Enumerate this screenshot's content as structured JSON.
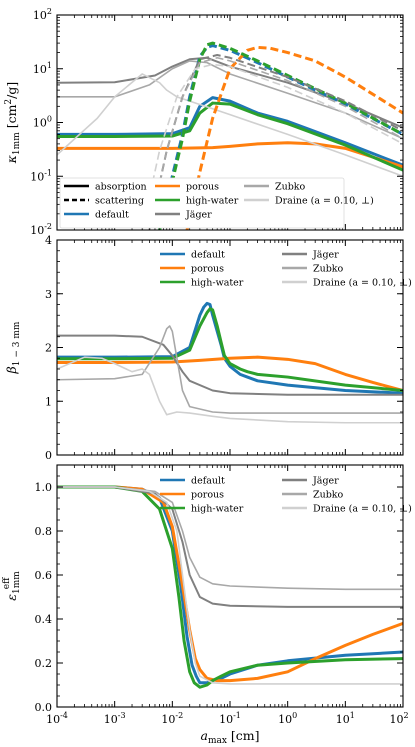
{
  "chart_data": [
    {
      "type": "line",
      "name": "kappa",
      "xscale": "log",
      "yscale": "log",
      "xlim": [
        0.0001,
        100
      ],
      "ylim": [
        0.01,
        100
      ],
      "xlabel": "",
      "ylabel": "κ1mm [cm²/g]",
      "x_ticks": [
        0.0001,
        0.001,
        0.01,
        0.1,
        1,
        10,
        100
      ],
      "y_ticks": [
        0.01,
        0.1,
        1,
        10,
        100
      ],
      "legend_position": "bottom-right",
      "legend": [
        {
          "label": "absorption",
          "color": "#000000",
          "style": "solid"
        },
        {
          "label": "scattering",
          "color": "#000000",
          "style": "dashed"
        },
        {
          "label": "default",
          "color": "#1f77b4",
          "style": "solid"
        },
        {
          "label": "porous",
          "color": "#ff7f0e",
          "style": "solid"
        },
        {
          "label": "high-water",
          "color": "#2ca02c",
          "style": "solid"
        },
        {
          "label": "Jäger",
          "color": "#808080",
          "style": "solid"
        },
        {
          "label": "Zubko",
          "color": "#a8a8a8",
          "style": "solid"
        },
        {
          "label": "Draine (a = 0.10, ⊥)",
          "color": "#d0d0d0",
          "style": "solid"
        }
      ],
      "series": [
        {
          "id": "default-abs",
          "color": "#1f77b4",
          "dash": false,
          "width": 3,
          "x": [
            0.0001,
            0.001,
            0.01,
            0.02,
            0.03,
            0.05,
            0.1,
            0.3,
            1,
            10,
            100
          ],
          "y": [
            0.6,
            0.6,
            0.62,
            0.8,
            2.0,
            2.9,
            2.5,
            1.5,
            1.05,
            0.42,
            0.16
          ]
        },
        {
          "id": "porous-abs",
          "color": "#ff7f0e",
          "dash": false,
          "width": 3,
          "x": [
            0.0001,
            0.001,
            0.01,
            0.05,
            0.1,
            0.3,
            1,
            3,
            10,
            100
          ],
          "y": [
            0.33,
            0.33,
            0.33,
            0.34,
            0.36,
            0.4,
            0.42,
            0.4,
            0.33,
            0.15
          ]
        },
        {
          "id": "highwater-abs",
          "color": "#2ca02c",
          "dash": false,
          "width": 3,
          "x": [
            0.0001,
            0.001,
            0.01,
            0.02,
            0.03,
            0.05,
            0.1,
            0.3,
            1,
            10,
            100
          ],
          "y": [
            0.55,
            0.55,
            0.56,
            0.7,
            1.5,
            2.3,
            2.2,
            1.4,
            0.95,
            0.38,
            0.13
          ]
        },
        {
          "id": "jager-abs",
          "color": "#808080",
          "dash": false,
          "width": 2,
          "x": [
            0.0001,
            0.001,
            0.005,
            0.01,
            0.02,
            0.04,
            0.1,
            1,
            10,
            100
          ],
          "y": [
            5.5,
            5.6,
            7.5,
            11,
            15,
            16,
            11,
            5.5,
            2.3,
            0.8
          ]
        },
        {
          "id": "zubko-abs",
          "color": "#a8a8a8",
          "dash": false,
          "width": 1.6,
          "x": [
            0.0001,
            0.001,
            0.004,
            0.01,
            0.02,
            0.04,
            0.1,
            1,
            10,
            100
          ],
          "y": [
            3,
            3,
            5,
            10,
            14,
            13,
            8,
            3.5,
            1.5,
            0.5
          ]
        },
        {
          "id": "draine-abs",
          "color": "#d0d0d0",
          "dash": false,
          "width": 1.6,
          "x": [
            0.0001,
            0.0005,
            0.001,
            0.003,
            0.006,
            0.008,
            0.012,
            0.02,
            0.05,
            0.1,
            1,
            10,
            100
          ],
          "y": [
            0.25,
            1.2,
            3,
            8,
            5.5,
            4,
            3,
            2.5,
            1.8,
            1.4,
            0.6,
            0.25,
            0.1
          ]
        },
        {
          "id": "default-sca",
          "color": "#1f77b4",
          "dash": true,
          "width": 3,
          "x": [
            0.006,
            0.01,
            0.015,
            0.02,
            0.03,
            0.04,
            0.05,
            0.1,
            0.3,
            1,
            10,
            100
          ],
          "y": [
            0.01,
            0.1,
            0.6,
            3,
            17,
            25,
            27,
            22,
            13,
            7,
            2.2,
            0.6
          ]
        },
        {
          "id": "porous-sca",
          "color": "#ff7f0e",
          "dash": true,
          "width": 3,
          "x": [
            0.018,
            0.03,
            0.05,
            0.1,
            0.2,
            0.3,
            0.5,
            1,
            3,
            10,
            100
          ],
          "y": [
            0.01,
            0.12,
            1.2,
            10,
            22,
            25,
            24,
            20,
            14,
            7,
            1.5
          ]
        },
        {
          "id": "highwater-sca",
          "color": "#2ca02c",
          "dash": true,
          "width": 3,
          "x": [
            0.006,
            0.01,
            0.015,
            0.02,
            0.03,
            0.04,
            0.05,
            0.1,
            0.3,
            1,
            10,
            100
          ],
          "y": [
            0.01,
            0.08,
            0.5,
            2.5,
            15,
            28,
            30,
            24,
            14,
            7.5,
            2.3,
            0.6
          ]
        },
        {
          "id": "jager-sca",
          "color": "#808080",
          "dash": true,
          "width": 2,
          "x": [
            0.004,
            0.008,
            0.015,
            0.03,
            0.06,
            0.1,
            1,
            10,
            100
          ],
          "y": [
            0.01,
            0.3,
            3,
            15,
            18,
            16,
            7,
            2.5,
            0.7
          ]
        },
        {
          "id": "zubko-sca",
          "color": "#a8a8a8",
          "dash": true,
          "width": 1.6,
          "x": [
            0.004,
            0.008,
            0.015,
            0.03,
            0.06,
            0.1,
            1,
            10,
            100
          ],
          "y": [
            0.01,
            0.3,
            3,
            13,
            16,
            14,
            6,
            2,
            0.5
          ]
        },
        {
          "id": "draine-sca",
          "color": "#d0d0d0",
          "dash": true,
          "width": 1.6,
          "x": [
            0.003,
            0.006,
            0.012,
            0.025,
            0.05,
            0.1,
            1,
            10,
            100
          ],
          "y": [
            0.01,
            0.3,
            3,
            10,
            12,
            11,
            4.5,
            1.5,
            0.4
          ]
        }
      ]
    },
    {
      "type": "line",
      "name": "beta",
      "xscale": "log",
      "yscale": "linear",
      "xlim": [
        0.0001,
        100
      ],
      "ylim": [
        0,
        4
      ],
      "xlabel": "",
      "ylabel": "β1−3mm",
      "x_ticks": [
        0.0001,
        0.001,
        0.01,
        0.1,
        1,
        10,
        100
      ],
      "y_ticks": [
        0,
        1,
        2,
        3,
        4
      ],
      "legend_position": "top",
      "legend": [
        {
          "label": "default",
          "color": "#1f77b4",
          "style": "solid"
        },
        {
          "label": "Jäger",
          "color": "#808080",
          "style": "solid"
        },
        {
          "label": "porous",
          "color": "#ff7f0e",
          "style": "solid"
        },
        {
          "label": "Zubko",
          "color": "#a8a8a8",
          "style": "solid"
        },
        {
          "label": "high-water",
          "color": "#2ca02c",
          "style": "solid"
        },
        {
          "label": "Draine (a = 0.10, ⊥)",
          "color": "#d0d0d0",
          "style": "solid"
        }
      ],
      "series": [
        {
          "id": "default",
          "color": "#1f77b4",
          "dash": false,
          "width": 3,
          "x": [
            0.0001,
            0.001,
            0.01,
            0.02,
            0.03,
            0.035,
            0.04,
            0.045,
            0.05,
            0.06,
            0.07,
            0.08,
            0.1,
            0.15,
            0.2,
            0.3,
            1,
            10,
            100
          ],
          "y": [
            1.82,
            1.82,
            1.83,
            2.0,
            2.6,
            2.75,
            2.82,
            2.8,
            2.6,
            2.3,
            2.05,
            1.8,
            1.65,
            1.5,
            1.45,
            1.38,
            1.3,
            1.2,
            1.15
          ]
        },
        {
          "id": "porous",
          "color": "#ff7f0e",
          "dash": false,
          "width": 3,
          "x": [
            0.0001,
            0.001,
            0.01,
            0.03,
            0.1,
            0.3,
            1,
            3,
            10,
            30,
            100
          ],
          "y": [
            1.72,
            1.72,
            1.73,
            1.76,
            1.8,
            1.82,
            1.78,
            1.7,
            1.5,
            1.35,
            1.2
          ]
        },
        {
          "id": "highwater",
          "color": "#2ca02c",
          "dash": false,
          "width": 3,
          "x": [
            0.0001,
            0.001,
            0.01,
            0.02,
            0.03,
            0.04,
            0.045,
            0.05,
            0.06,
            0.07,
            0.08,
            0.1,
            0.15,
            0.2,
            0.3,
            1,
            10,
            100
          ],
          "y": [
            1.79,
            1.79,
            1.8,
            1.95,
            2.4,
            2.65,
            2.72,
            2.7,
            2.4,
            2.1,
            1.85,
            1.7,
            1.6,
            1.55,
            1.5,
            1.45,
            1.3,
            1.2
          ]
        },
        {
          "id": "jager",
          "color": "#808080",
          "dash": false,
          "width": 2,
          "x": [
            0.0001,
            0.001,
            0.003,
            0.007,
            0.01,
            0.015,
            0.02,
            0.05,
            0.1,
            1,
            10,
            100
          ],
          "y": [
            2.22,
            2.22,
            2.2,
            2.05,
            1.85,
            1.55,
            1.38,
            1.2,
            1.15,
            1.12,
            1.12,
            1.12
          ]
        },
        {
          "id": "zubko",
          "color": "#a8a8a8",
          "dash": false,
          "width": 1.6,
          "x": [
            0.0001,
            0.001,
            0.003,
            0.006,
            0.008,
            0.009,
            0.01,
            0.012,
            0.015,
            0.02,
            0.05,
            0.1,
            1,
            10,
            100
          ],
          "y": [
            1.4,
            1.42,
            1.5,
            2.0,
            2.35,
            2.4,
            2.3,
            1.8,
            1.2,
            0.9,
            0.8,
            0.78,
            0.78,
            0.78,
            0.78
          ]
        },
        {
          "id": "draine",
          "color": "#d0d0d0",
          "dash": false,
          "width": 1.6,
          "x": [
            0.0001,
            0.0003,
            0.0006,
            0.001,
            0.002,
            0.003,
            0.004,
            0.006,
            0.008,
            0.012,
            0.02,
            0.05,
            0.1,
            1,
            10,
            100
          ],
          "y": [
            1.6,
            1.82,
            1.8,
            1.7,
            1.55,
            1.6,
            1.5,
            1.0,
            0.75,
            0.8,
            0.78,
            0.72,
            0.68,
            0.62,
            0.6,
            0.6
          ]
        }
      ]
    },
    {
      "type": "line",
      "name": "epsilon",
      "xscale": "log",
      "yscale": "linear",
      "xlim": [
        0.0001,
        100
      ],
      "ylim": [
        0,
        1.1
      ],
      "xlabel": "a_max [cm]",
      "ylabel": "ε_eff 1mm",
      "x_ticks": [
        0.0001,
        0.001,
        0.01,
        0.1,
        1,
        10,
        100
      ],
      "x_tick_labels": [
        "10",
        "10",
        "10",
        "10",
        "10",
        "10",
        "10"
      ],
      "x_tick_exps": [
        "-4",
        "-3",
        "-2",
        "-1",
        "0",
        "1",
        "2"
      ],
      "y_ticks": [
        0,
        0.2,
        0.4,
        0.6,
        0.8,
        1.0
      ],
      "y_tick_labels": [
        "0.0",
        "0.2",
        "0.4",
        "0.6",
        "0.8",
        "1.0"
      ],
      "legend_position": "top-right",
      "legend": [
        {
          "label": "default",
          "color": "#1f77b4",
          "style": "solid"
        },
        {
          "label": "Jäger",
          "color": "#808080",
          "style": "solid"
        },
        {
          "label": "porous",
          "color": "#ff7f0e",
          "style": "solid"
        },
        {
          "label": "Zubko",
          "color": "#a8a8a8",
          "style": "solid"
        },
        {
          "label": "high-water",
          "color": "#2ca02c",
          "style": "solid"
        },
        {
          "label": "Draine (a = 0.10, ⊥)",
          "color": "#d0d0d0",
          "style": "solid"
        }
      ],
      "series": [
        {
          "id": "default",
          "color": "#1f77b4",
          "dash": false,
          "width": 3,
          "x": [
            0.0001,
            0.001,
            0.003,
            0.006,
            0.01,
            0.014,
            0.018,
            0.022,
            0.026,
            0.03,
            0.04,
            0.05,
            0.07,
            0.1,
            0.3,
            1,
            10,
            100
          ],
          "y": [
            1.0,
            1.0,
            0.99,
            0.95,
            0.8,
            0.55,
            0.32,
            0.19,
            0.14,
            0.11,
            0.11,
            0.12,
            0.13,
            0.15,
            0.19,
            0.21,
            0.235,
            0.25
          ]
        },
        {
          "id": "porous",
          "color": "#ff7f0e",
          "dash": false,
          "width": 3,
          "x": [
            0.0001,
            0.001,
            0.003,
            0.007,
            0.01,
            0.014,
            0.02,
            0.025,
            0.03,
            0.04,
            0.06,
            0.1,
            0.3,
            1,
            3,
            10,
            30,
            100
          ],
          "y": [
            1.0,
            1.0,
            0.99,
            0.93,
            0.82,
            0.6,
            0.35,
            0.22,
            0.17,
            0.13,
            0.12,
            0.12,
            0.13,
            0.16,
            0.22,
            0.28,
            0.33,
            0.38
          ]
        },
        {
          "id": "highwater",
          "color": "#2ca02c",
          "dash": false,
          "width": 3,
          "x": [
            0.0001,
            0.001,
            0.003,
            0.006,
            0.01,
            0.013,
            0.016,
            0.02,
            0.024,
            0.03,
            0.04,
            0.05,
            0.07,
            0.1,
            0.3,
            1,
            10,
            100
          ],
          "y": [
            1.0,
            1.0,
            0.98,
            0.9,
            0.72,
            0.5,
            0.3,
            0.16,
            0.11,
            0.09,
            0.1,
            0.12,
            0.14,
            0.16,
            0.19,
            0.2,
            0.215,
            0.22
          ]
        },
        {
          "id": "jager",
          "color": "#808080",
          "dash": false,
          "width": 2,
          "x": [
            0.0001,
            0.001,
            0.005,
            0.01,
            0.015,
            0.02,
            0.03,
            0.05,
            0.1,
            1,
            10,
            100
          ],
          "y": [
            1.0,
            1.0,
            0.97,
            0.9,
            0.75,
            0.6,
            0.5,
            0.47,
            0.46,
            0.455,
            0.455,
            0.455
          ]
        },
        {
          "id": "zubko",
          "color": "#a8a8a8",
          "dash": false,
          "width": 1.6,
          "x": [
            0.0001,
            0.001,
            0.005,
            0.01,
            0.015,
            0.02,
            0.03,
            0.05,
            0.1,
            1,
            10,
            100
          ],
          "y": [
            1.0,
            1.0,
            0.98,
            0.93,
            0.8,
            0.68,
            0.59,
            0.56,
            0.55,
            0.54,
            0.535,
            0.535
          ]
        },
        {
          "id": "draine",
          "color": "#d0d0d0",
          "dash": false,
          "width": 1.6,
          "x": [
            0.0001,
            0.001,
            0.004,
            0.008,
            0.012,
            0.015,
            0.02,
            0.025,
            0.03,
            0.05,
            0.1,
            1,
            10,
            100
          ],
          "y": [
            1.0,
            1.0,
            0.98,
            0.93,
            0.8,
            0.6,
            0.35,
            0.2,
            0.14,
            0.11,
            0.105,
            0.105,
            0.105,
            0.105
          ]
        }
      ]
    }
  ]
}
